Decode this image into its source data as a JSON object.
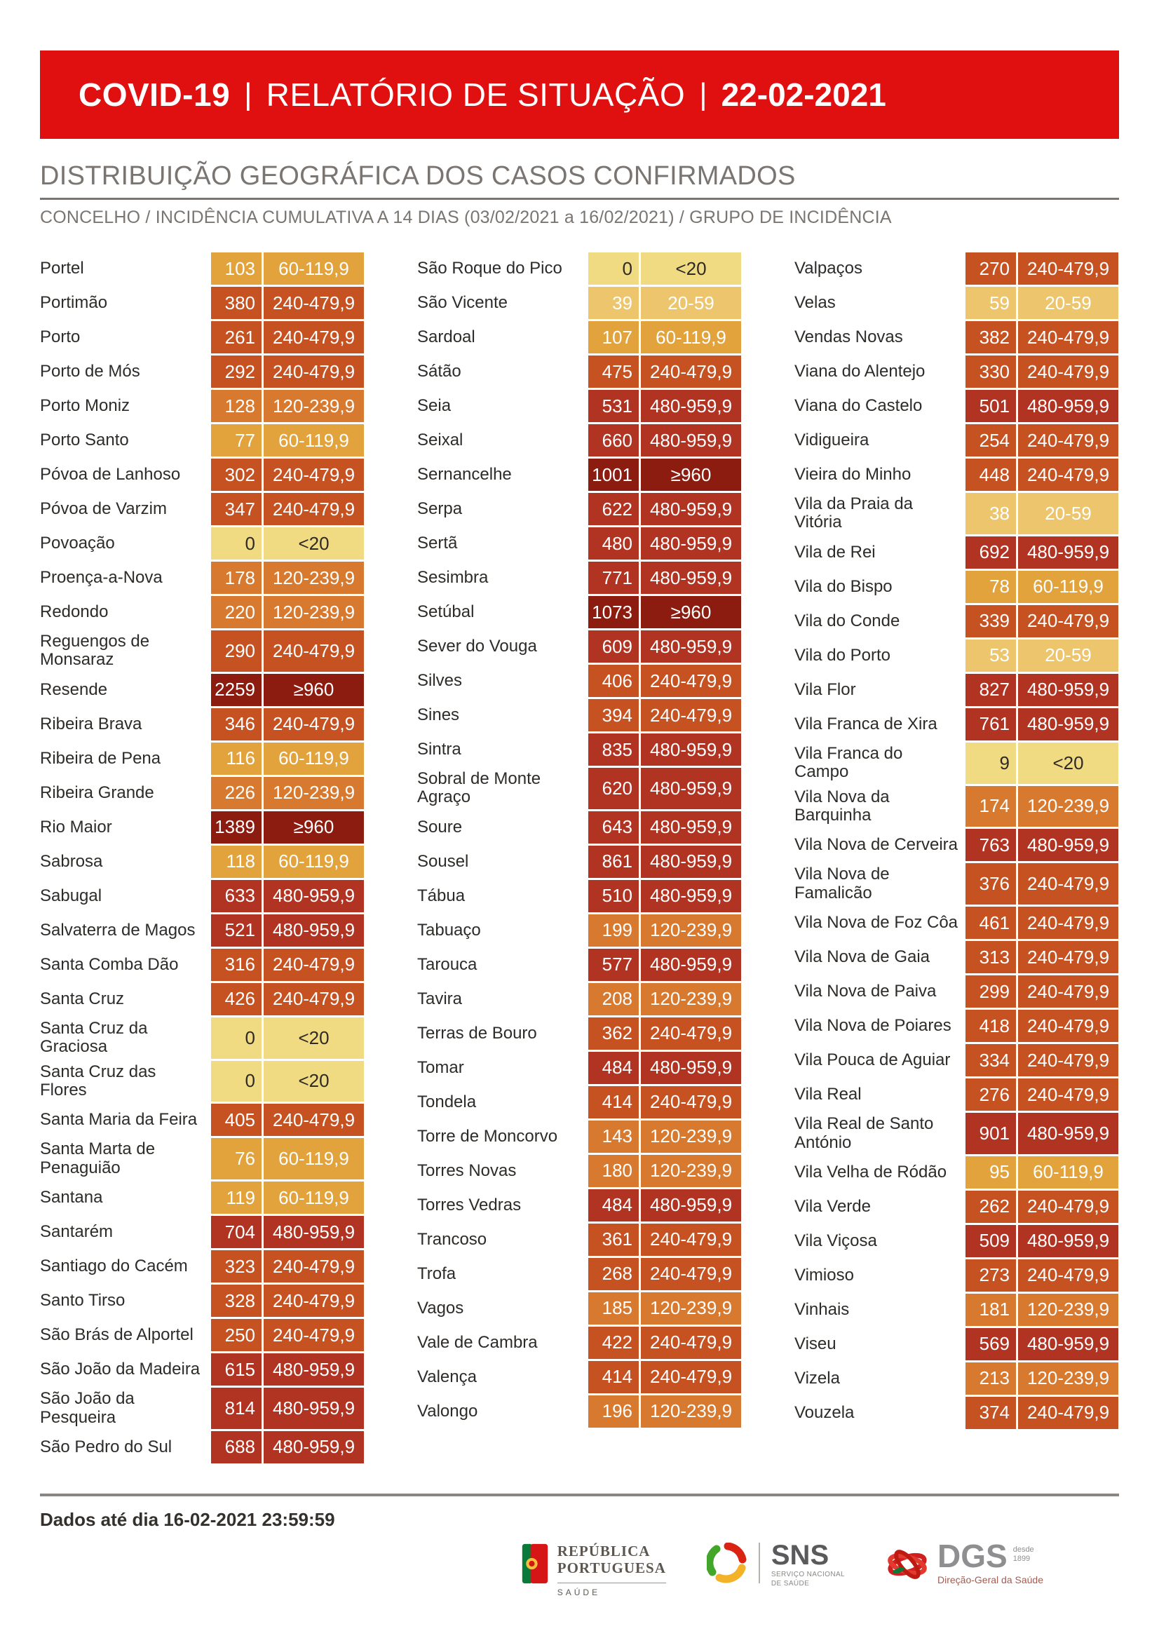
{
  "header": {
    "brand": "COVID-19",
    "separator": "|",
    "title": "RELATÓRIO DE SITUAÇÃO",
    "date": "22-02-2021",
    "band_color": "#e11010"
  },
  "section": {
    "title": "DISTRIBUIÇÃO GEOGRÁFICA DOS CASOS CONFIRMADOS",
    "subtitle": "CONCELHO / INCIDÊNCIA CUMULATIVA A 14 DIAS (03/02/2021 a 16/02/2021) / GRUPO DE INCIDÊNCIA"
  },
  "table": {
    "groups": {
      "<20": {
        "bg": "#f0da82",
        "fg": "#2e2a24"
      },
      "20-59": {
        "bg": "#ecc56d",
        "fg": "#ffffff"
      },
      "60-119,9": {
        "bg": "#e3a33c",
        "fg": "#ffffff"
      },
      "120-239,9": {
        "bg": "#d7792e",
        "fg": "#ffffff"
      },
      "240-479,9": {
        "bg": "#c65222",
        "fg": "#ffffff"
      },
      "480-959,9": {
        "bg": "#b13322",
        "fg": "#ffffff"
      },
      "≥960": {
        "bg": "#8c1b10",
        "fg": "#ffffff"
      }
    },
    "columns": [
      [
        {
          "name": "Portel",
          "value": "103",
          "group": "60-119,9"
        },
        {
          "name": "Portimão",
          "value": "380",
          "group": "240-479,9"
        },
        {
          "name": "Porto",
          "value": "261",
          "group": "240-479,9"
        },
        {
          "name": "Porto de Mós",
          "value": "292",
          "group": "240-479,9"
        },
        {
          "name": "Porto Moniz",
          "value": "128",
          "group": "120-239,9"
        },
        {
          "name": "Porto Santo",
          "value": "77",
          "group": "60-119,9"
        },
        {
          "name": "Póvoa de Lanhoso",
          "value": "302",
          "group": "240-479,9"
        },
        {
          "name": "Póvoa de Varzim",
          "value": "347",
          "group": "240-479,9"
        },
        {
          "name": "Povoação",
          "value": "0",
          "group": "<20"
        },
        {
          "name": "Proença-a-Nova",
          "value": "178",
          "group": "120-239,9"
        },
        {
          "name": "Redondo",
          "value": "220",
          "group": "120-239,9"
        },
        {
          "name": "Reguengos de\nMonsaraz",
          "value": "290",
          "group": "240-479,9"
        },
        {
          "name": "Resende",
          "value": "2259",
          "group": "≥960"
        },
        {
          "name": "Ribeira Brava",
          "value": "346",
          "group": "240-479,9"
        },
        {
          "name": "Ribeira de Pena",
          "value": "116",
          "group": "60-119,9"
        },
        {
          "name": "Ribeira Grande",
          "value": "226",
          "group": "120-239,9"
        },
        {
          "name": "Rio Maior",
          "value": "1389",
          "group": "≥960"
        },
        {
          "name": "Sabrosa",
          "value": "118",
          "group": "60-119,9"
        },
        {
          "name": "Sabugal",
          "value": "633",
          "group": "480-959,9"
        },
        {
          "name": "Salvaterra de Magos",
          "value": "521",
          "group": "480-959,9"
        },
        {
          "name": "Santa Comba Dão",
          "value": "316",
          "group": "240-479,9"
        },
        {
          "name": "Santa Cruz",
          "value": "426",
          "group": "240-479,9"
        },
        {
          "name": "Santa Cruz da\nGraciosa",
          "value": "0",
          "group": "<20"
        },
        {
          "name": "Santa Cruz das Flores",
          "value": "0",
          "group": "<20"
        },
        {
          "name": "Santa Maria da Feira",
          "value": "405",
          "group": "240-479,9"
        },
        {
          "name": "Santa Marta de\nPenaguião",
          "value": "76",
          "group": "60-119,9"
        },
        {
          "name": "Santana",
          "value": "119",
          "group": "60-119,9"
        },
        {
          "name": "Santarém",
          "value": "704",
          "group": "480-959,9"
        },
        {
          "name": "Santiago do Cacém",
          "value": "323",
          "group": "240-479,9"
        },
        {
          "name": "Santo Tirso",
          "value": "328",
          "group": "240-479,9"
        },
        {
          "name": "São Brás de Alportel",
          "value": "250",
          "group": "240-479,9"
        },
        {
          "name": "São João da Madeira",
          "value": "615",
          "group": "480-959,9"
        },
        {
          "name": "São João da\nPesqueira",
          "value": "814",
          "group": "480-959,9"
        },
        {
          "name": "São Pedro do Sul",
          "value": "688",
          "group": "480-959,9"
        }
      ],
      [
        {
          "name": "São Roque do Pico",
          "value": "0",
          "group": "<20"
        },
        {
          "name": "São Vicente",
          "value": "39",
          "group": "20-59"
        },
        {
          "name": "Sardoal",
          "value": "107",
          "group": "60-119,9"
        },
        {
          "name": "Sátão",
          "value": "475",
          "group": "240-479,9"
        },
        {
          "name": "Seia",
          "value": "531",
          "group": "480-959,9"
        },
        {
          "name": "Seixal",
          "value": "660",
          "group": "480-959,9"
        },
        {
          "name": "Sernancelhe",
          "value": "1001",
          "group": "≥960"
        },
        {
          "name": "Serpa",
          "value": "622",
          "group": "480-959,9"
        },
        {
          "name": "Sertã",
          "value": "480",
          "group": "480-959,9"
        },
        {
          "name": "Sesimbra",
          "value": "771",
          "group": "480-959,9"
        },
        {
          "name": "Setúbal",
          "value": "1073",
          "group": "≥960"
        },
        {
          "name": "Sever do Vouga",
          "value": "609",
          "group": "480-959,9"
        },
        {
          "name": "Silves",
          "value": "406",
          "group": "240-479,9"
        },
        {
          "name": "Sines",
          "value": "394",
          "group": "240-479,9"
        },
        {
          "name": "Sintra",
          "value": "835",
          "group": "480-959,9"
        },
        {
          "name": "Sobral de Monte\nAgraço",
          "value": "620",
          "group": "480-959,9"
        },
        {
          "name": "Soure",
          "value": "643",
          "group": "480-959,9"
        },
        {
          "name": "Sousel",
          "value": "861",
          "group": "480-959,9"
        },
        {
          "name": "Tábua",
          "value": "510",
          "group": "480-959,9"
        },
        {
          "name": "Tabuaço",
          "value": "199",
          "group": "120-239,9"
        },
        {
          "name": "Tarouca",
          "value": "577",
          "group": "480-959,9"
        },
        {
          "name": "Tavira",
          "value": "208",
          "group": "120-239,9"
        },
        {
          "name": "Terras de Bouro",
          "value": "362",
          "group": "240-479,9"
        },
        {
          "name": "Tomar",
          "value": "484",
          "group": "480-959,9"
        },
        {
          "name": "Tondela",
          "value": "414",
          "group": "240-479,9"
        },
        {
          "name": "Torre de Moncorvo",
          "value": "143",
          "group": "120-239,9"
        },
        {
          "name": "Torres Novas",
          "value": "180",
          "group": "120-239,9"
        },
        {
          "name": "Torres Vedras",
          "value": "484",
          "group": "480-959,9"
        },
        {
          "name": "Trancoso",
          "value": "361",
          "group": "240-479,9"
        },
        {
          "name": "Trofa",
          "value": "268",
          "group": "240-479,9"
        },
        {
          "name": "Vagos",
          "value": "185",
          "group": "120-239,9"
        },
        {
          "name": "Vale de Cambra",
          "value": "422",
          "group": "240-479,9"
        },
        {
          "name": "Valença",
          "value": "414",
          "group": "240-479,9"
        },
        {
          "name": "Valongo",
          "value": "196",
          "group": "120-239,9"
        }
      ],
      [
        {
          "name": "Valpaços",
          "value": "270",
          "group": "240-479,9"
        },
        {
          "name": "Velas",
          "value": "59",
          "group": "20-59"
        },
        {
          "name": "Vendas Novas",
          "value": "382",
          "group": "240-479,9"
        },
        {
          "name": "Viana do Alentejo",
          "value": "330",
          "group": "240-479,9"
        },
        {
          "name": "Viana do Castelo",
          "value": "501",
          "group": "480-959,9"
        },
        {
          "name": "Vidigueira",
          "value": "254",
          "group": "240-479,9"
        },
        {
          "name": "Vieira do Minho",
          "value": "448",
          "group": "240-479,9"
        },
        {
          "name": "Vila da Praia da\nVitória",
          "value": "38",
          "group": "20-59"
        },
        {
          "name": "Vila de Rei",
          "value": "692",
          "group": "480-959,9"
        },
        {
          "name": "Vila do Bispo",
          "value": "78",
          "group": "60-119,9"
        },
        {
          "name": "Vila do Conde",
          "value": "339",
          "group": "240-479,9"
        },
        {
          "name": "Vila do Porto",
          "value": "53",
          "group": "20-59"
        },
        {
          "name": "Vila Flor",
          "value": "827",
          "group": "480-959,9"
        },
        {
          "name": "Vila Franca de Xira",
          "value": "761",
          "group": "480-959,9"
        },
        {
          "name": "Vila Franca do\nCampo",
          "value": "9",
          "group": "<20"
        },
        {
          "name": "Vila Nova da\nBarquinha",
          "value": "174",
          "group": "120-239,9"
        },
        {
          "name": "Vila Nova de Cerveira",
          "value": "763",
          "group": "480-959,9"
        },
        {
          "name": "Vila Nova de\nFamalicão",
          "value": "376",
          "group": "240-479,9"
        },
        {
          "name": "Vila Nova de Foz Côa",
          "value": "461",
          "group": "240-479,9"
        },
        {
          "name": "Vila Nova de Gaia",
          "value": "313",
          "group": "240-479,9"
        },
        {
          "name": "Vila Nova de Paiva",
          "value": "299",
          "group": "240-479,9"
        },
        {
          "name": "Vila Nova de Poiares",
          "value": "418",
          "group": "240-479,9"
        },
        {
          "name": "Vila Pouca de Aguiar",
          "value": "334",
          "group": "240-479,9"
        },
        {
          "name": "Vila Real",
          "value": "276",
          "group": "240-479,9"
        },
        {
          "name": "Vila Real de Santo\nAntónio",
          "value": "901",
          "group": "480-959,9"
        },
        {
          "name": "Vila Velha de Ródão",
          "value": "95",
          "group": "60-119,9"
        },
        {
          "name": "Vila Verde",
          "value": "262",
          "group": "240-479,9"
        },
        {
          "name": "Vila Viçosa",
          "value": "509",
          "group": "480-959,9"
        },
        {
          "name": "Vimioso",
          "value": "273",
          "group": "240-479,9"
        },
        {
          "name": "Vinhais",
          "value": "181",
          "group": "120-239,9"
        },
        {
          "name": "Viseu",
          "value": "569",
          "group": "480-959,9"
        },
        {
          "name": "Vizela",
          "value": "213",
          "group": "120-239,9"
        },
        {
          "name": "Vouzela",
          "value": "374",
          "group": "240-479,9"
        }
      ]
    ]
  },
  "footer": {
    "note": "Dados até dia 16-02-2021 23:59:59",
    "logos": {
      "republica": {
        "line1": "REPÚBLICA",
        "line2": "PORTUGUESA",
        "sub": "SAÚDE"
      },
      "sns": {
        "abbr": "SNS",
        "sub": "SERVIÇO NACIONAL\nDE SAÚDE"
      },
      "dgs": {
        "abbr": "DGS",
        "since": "desde\n1899",
        "sub": "Direção-Geral da Saúde"
      }
    }
  }
}
